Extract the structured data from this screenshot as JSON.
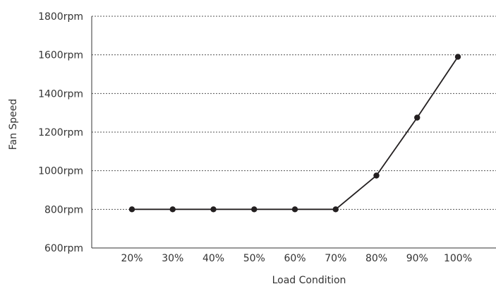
{
  "chart_data": {
    "type": "line",
    "xlabel": "Load Condition",
    "ylabel": "Fan Speed",
    "categories": [
      "20%",
      "30%",
      "40%",
      "50%",
      "60%",
      "70%",
      "80%",
      "90%",
      "100%"
    ],
    "values": [
      800,
      800,
      800,
      800,
      800,
      800,
      975,
      1275,
      1590
    ],
    "ylim": [
      600,
      1800
    ],
    "yticks": [
      600,
      800,
      1000,
      1200,
      1400,
      1600,
      1800
    ],
    "ytick_labels": [
      "600rpm",
      "800rpm",
      "1000rpm",
      "1200rpm",
      "1400rpm",
      "1600rpm",
      "1800rpm"
    ],
    "grid": true,
    "grid_style": "dotted",
    "colors": {
      "line": "#231f20",
      "marker": "#231f20",
      "grid": "#555555",
      "axis": "#333333"
    }
  }
}
